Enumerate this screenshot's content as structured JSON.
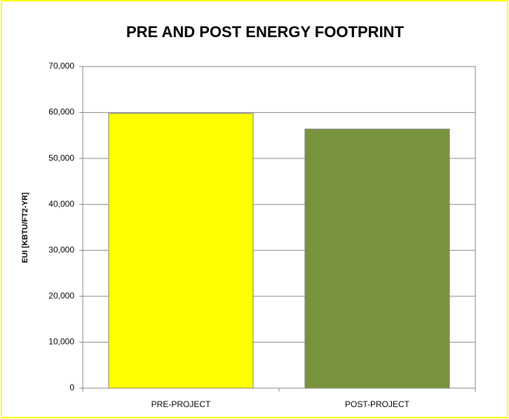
{
  "chart_data": {
    "type": "bar",
    "title": "PRE AND POST ENERGY FOOTPRINT",
    "y_label": "EUI  [KBTU/FT2-YR]",
    "categories": [
      "PRE-PROJECT",
      "POST-PROJECT"
    ],
    "values": [
      59800,
      56400
    ],
    "colors": [
      "#ffff00",
      "#77933c"
    ],
    "ylim": [
      0,
      70000
    ],
    "yticks": [
      0,
      {
        "value": 10000,
        "label": "10,000"
      },
      {
        "value": 20000,
        "label": "20,000"
      },
      {
        "value": 30000,
        "label": "30,000"
      },
      {
        "value": 40000,
        "label": "40,000"
      },
      {
        "value": 50000,
        "label": "50,000"
      },
      {
        "value": 60000,
        "label": "60,000"
      },
      {
        "value": 70000,
        "label": "70,000"
      }
    ],
    "grid": true
  }
}
